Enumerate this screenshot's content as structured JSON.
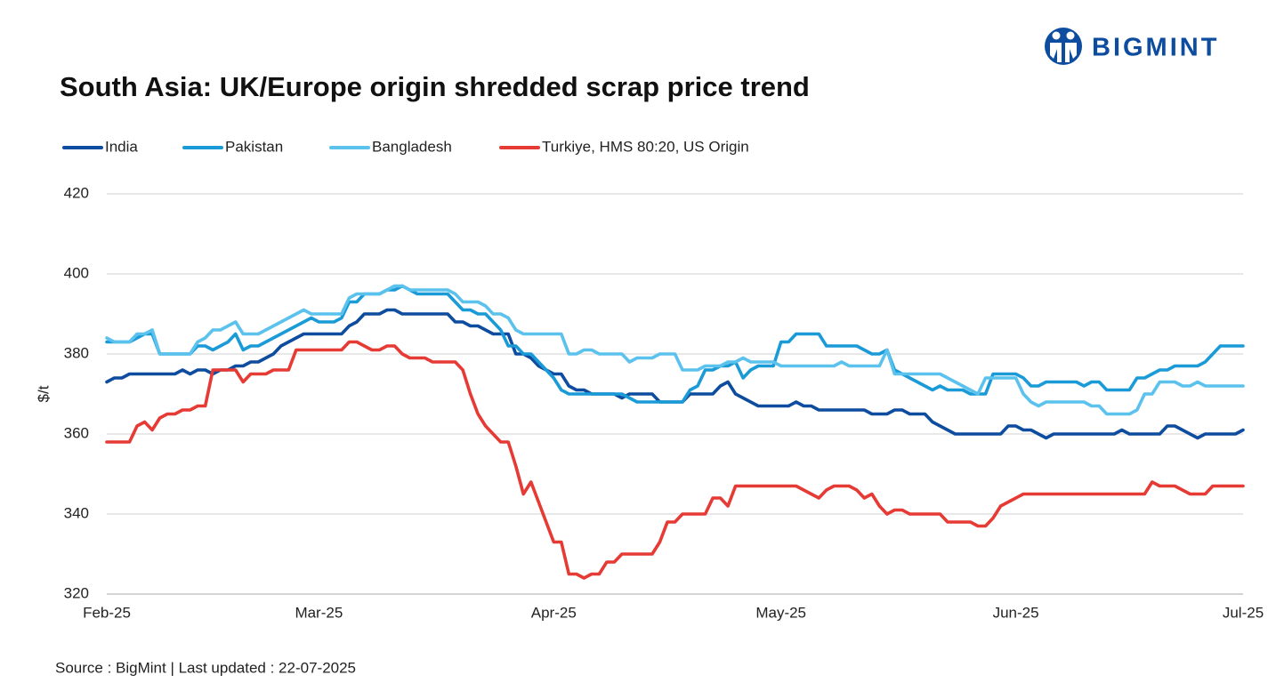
{
  "brand": "BIGMINT",
  "source": "Source : BigMint | Last updated : 22-07-2025",
  "chart_data": {
    "type": "line",
    "title": "South Asia: UK/Europe origin shredded scrap price trend",
    "y_label": "$/t",
    "categories": [
      "Feb-25",
      null,
      null,
      null,
      null,
      null,
      null,
      null,
      null,
      null,
      null,
      null,
      null,
      null,
      null,
      null,
      null,
      null,
      null,
      null,
      null,
      null,
      null,
      null,
      null,
      null,
      null,
      null,
      "Mar-25",
      null,
      null,
      null,
      null,
      null,
      null,
      null,
      null,
      null,
      null,
      null,
      null,
      null,
      null,
      null,
      null,
      null,
      null,
      null,
      null,
      null,
      null,
      null,
      null,
      null,
      null,
      null,
      null,
      null,
      null,
      "Apr-25",
      null,
      null,
      null,
      null,
      null,
      null,
      null,
      null,
      null,
      null,
      null,
      null,
      null,
      null,
      null,
      null,
      null,
      null,
      null,
      null,
      null,
      null,
      null,
      null,
      null,
      null,
      null,
      null,
      null,
      "May-25",
      null,
      null,
      null,
      null,
      null,
      null,
      null,
      null,
      null,
      null,
      null,
      null,
      null,
      null,
      null,
      null,
      null,
      null,
      null,
      null,
      null,
      null,
      null,
      null,
      null,
      null,
      null,
      null,
      null,
      null,
      "Jun-25",
      null,
      null,
      null,
      null,
      null,
      null,
      null,
      null,
      null,
      null,
      null,
      null,
      null,
      null,
      null,
      null,
      null,
      null,
      null,
      null,
      null,
      null,
      null,
      null,
      null,
      null,
      null,
      null,
      null,
      "Jul-25"
    ],
    "series": [
      {
        "name": "India",
        "color": "#0d4c9e",
        "values": [
          373,
          374,
          374,
          375,
          375,
          375,
          375,
          375,
          375,
          375,
          376,
          375,
          376,
          376,
          375,
          376,
          376,
          377,
          377,
          378,
          378,
          379,
          380,
          382,
          383,
          384,
          385,
          385,
          385,
          385,
          385,
          385,
          387,
          388,
          390,
          390,
          390,
          391,
          391,
          390,
          390,
          390,
          390,
          390,
          390,
          390,
          388,
          388,
          387,
          387,
          386,
          385,
          385,
          385,
          380,
          380,
          379,
          377,
          376,
          375,
          375,
          372,
          371,
          371,
          370,
          370,
          370,
          370,
          369,
          370,
          370,
          370,
          370,
          368,
          368,
          368,
          368,
          370,
          370,
          370,
          370,
          372,
          373,
          370,
          369,
          368,
          367,
          367,
          367,
          367,
          367,
          368,
          367,
          367,
          366,
          366,
          366,
          366,
          366,
          366,
          366,
          365,
          365,
          365,
          366,
          366,
          365,
          365,
          365,
          363,
          362,
          361,
          360,
          360,
          360,
          360,
          360,
          360,
          360,
          362,
          362,
          361,
          361,
          360,
          359,
          360,
          360,
          360,
          360,
          360,
          360,
          360,
          360,
          360,
          361,
          360,
          360,
          360,
          360,
          360,
          362,
          362,
          361,
          360,
          359,
          360,
          360,
          360,
          360,
          360,
          361
        ]
      },
      {
        "name": "Pakistan",
        "color": "#1a9bd7",
        "values": [
          383,
          383,
          383,
          383,
          384,
          385,
          385,
          380,
          380,
          380,
          380,
          380,
          382,
          382,
          381,
          382,
          383,
          385,
          381,
          382,
          382,
          383,
          384,
          385,
          386,
          387,
          388,
          389,
          388,
          388,
          388,
          389,
          393,
          393,
          395,
          395,
          395,
          396,
          396,
          397,
          396,
          395,
          395,
          395,
          395,
          395,
          393,
          391,
          391,
          390,
          390,
          388,
          386,
          382,
          382,
          380,
          380,
          378,
          376,
          374,
          371,
          370,
          370,
          370,
          370,
          370,
          370,
          370,
          370,
          369,
          368,
          368,
          368,
          368,
          368,
          368,
          368,
          371,
          372,
          376,
          376,
          377,
          377,
          378,
          374,
          376,
          377,
          377,
          377,
          383,
          383,
          385,
          385,
          385,
          385,
          382,
          382,
          382,
          382,
          382,
          381,
          380,
          380,
          381,
          376,
          375,
          374,
          373,
          372,
          371,
          372,
          371,
          371,
          371,
          370,
          370,
          370,
          375,
          375,
          375,
          375,
          374,
          372,
          372,
          373,
          373,
          373,
          373,
          373,
          372,
          373,
          373,
          371,
          371,
          371,
          371,
          374,
          374,
          375,
          376,
          376,
          377,
          377,
          377,
          377,
          378,
          380,
          382,
          382,
          382,
          382
        ]
      },
      {
        "name": "Bangladesh",
        "color": "#5bc2ee",
        "values": [
          384,
          383,
          383,
          383,
          385,
          385,
          386,
          380,
          380,
          380,
          380,
          380,
          383,
          384,
          386,
          386,
          387,
          388,
          385,
          385,
          385,
          386,
          387,
          388,
          389,
          390,
          391,
          390,
          390,
          390,
          390,
          390,
          394,
          395,
          395,
          395,
          395,
          396,
          397,
          397,
          396,
          396,
          396,
          396,
          396,
          396,
          395,
          393,
          393,
          393,
          392,
          390,
          390,
          389,
          386,
          385,
          385,
          385,
          385,
          385,
          385,
          380,
          380,
          381,
          381,
          380,
          380,
          380,
          380,
          378,
          379,
          379,
          379,
          380,
          380,
          380,
          376,
          376,
          376,
          377,
          377,
          377,
          378,
          378,
          379,
          378,
          378,
          378,
          378,
          377,
          377,
          377,
          377,
          377,
          377,
          377,
          377,
          378,
          377,
          377,
          377,
          377,
          377,
          381,
          375,
          375,
          375,
          375,
          375,
          375,
          375,
          374,
          373,
          372,
          371,
          370,
          374,
          374,
          374,
          374,
          374,
          370,
          368,
          367,
          368,
          368,
          368,
          368,
          368,
          368,
          367,
          367,
          365,
          365,
          365,
          365,
          366,
          370,
          370,
          373,
          373,
          373,
          372,
          372,
          373,
          372,
          372,
          372,
          372,
          372,
          372
        ]
      },
      {
        "name": "Turkiye, HMS 80:20, US Origin",
        "color": "#e63a35",
        "values": [
          358,
          358,
          358,
          358,
          362,
          363,
          361,
          364,
          365,
          365,
          366,
          366,
          367,
          367,
          376,
          376,
          376,
          376,
          373,
          375,
          375,
          375,
          376,
          376,
          376,
          381,
          381,
          381,
          381,
          381,
          381,
          381,
          383,
          383,
          382,
          381,
          381,
          382,
          382,
          380,
          379,
          379,
          379,
          378,
          378,
          378,
          378,
          376,
          370,
          365,
          362,
          360,
          358,
          358,
          352,
          345,
          348,
          343,
          338,
          333,
          333,
          325,
          325,
          324,
          325,
          325,
          328,
          328,
          330,
          330,
          330,
          330,
          330,
          333,
          338,
          338,
          340,
          340,
          340,
          340,
          344,
          344,
          342,
          347,
          347,
          347,
          347,
          347,
          347,
          347,
          347,
          347,
          346,
          345,
          344,
          346,
          347,
          347,
          347,
          346,
          344,
          345,
          342,
          340,
          341,
          341,
          340,
          340,
          340,
          340,
          340,
          338,
          338,
          338,
          338,
          337,
          337,
          339,
          342,
          343,
          344,
          345,
          345,
          345,
          345,
          345,
          345,
          345,
          345,
          345,
          345,
          345,
          345,
          345,
          345,
          345,
          345,
          345,
          348,
          347,
          347,
          347,
          346,
          345,
          345,
          345,
          347,
          347,
          347,
          347,
          347
        ]
      }
    ],
    "ylim": [
      320,
      420
    ],
    "yticks": [
      320,
      340,
      360,
      380,
      400,
      420
    ],
    "grid": true
  }
}
